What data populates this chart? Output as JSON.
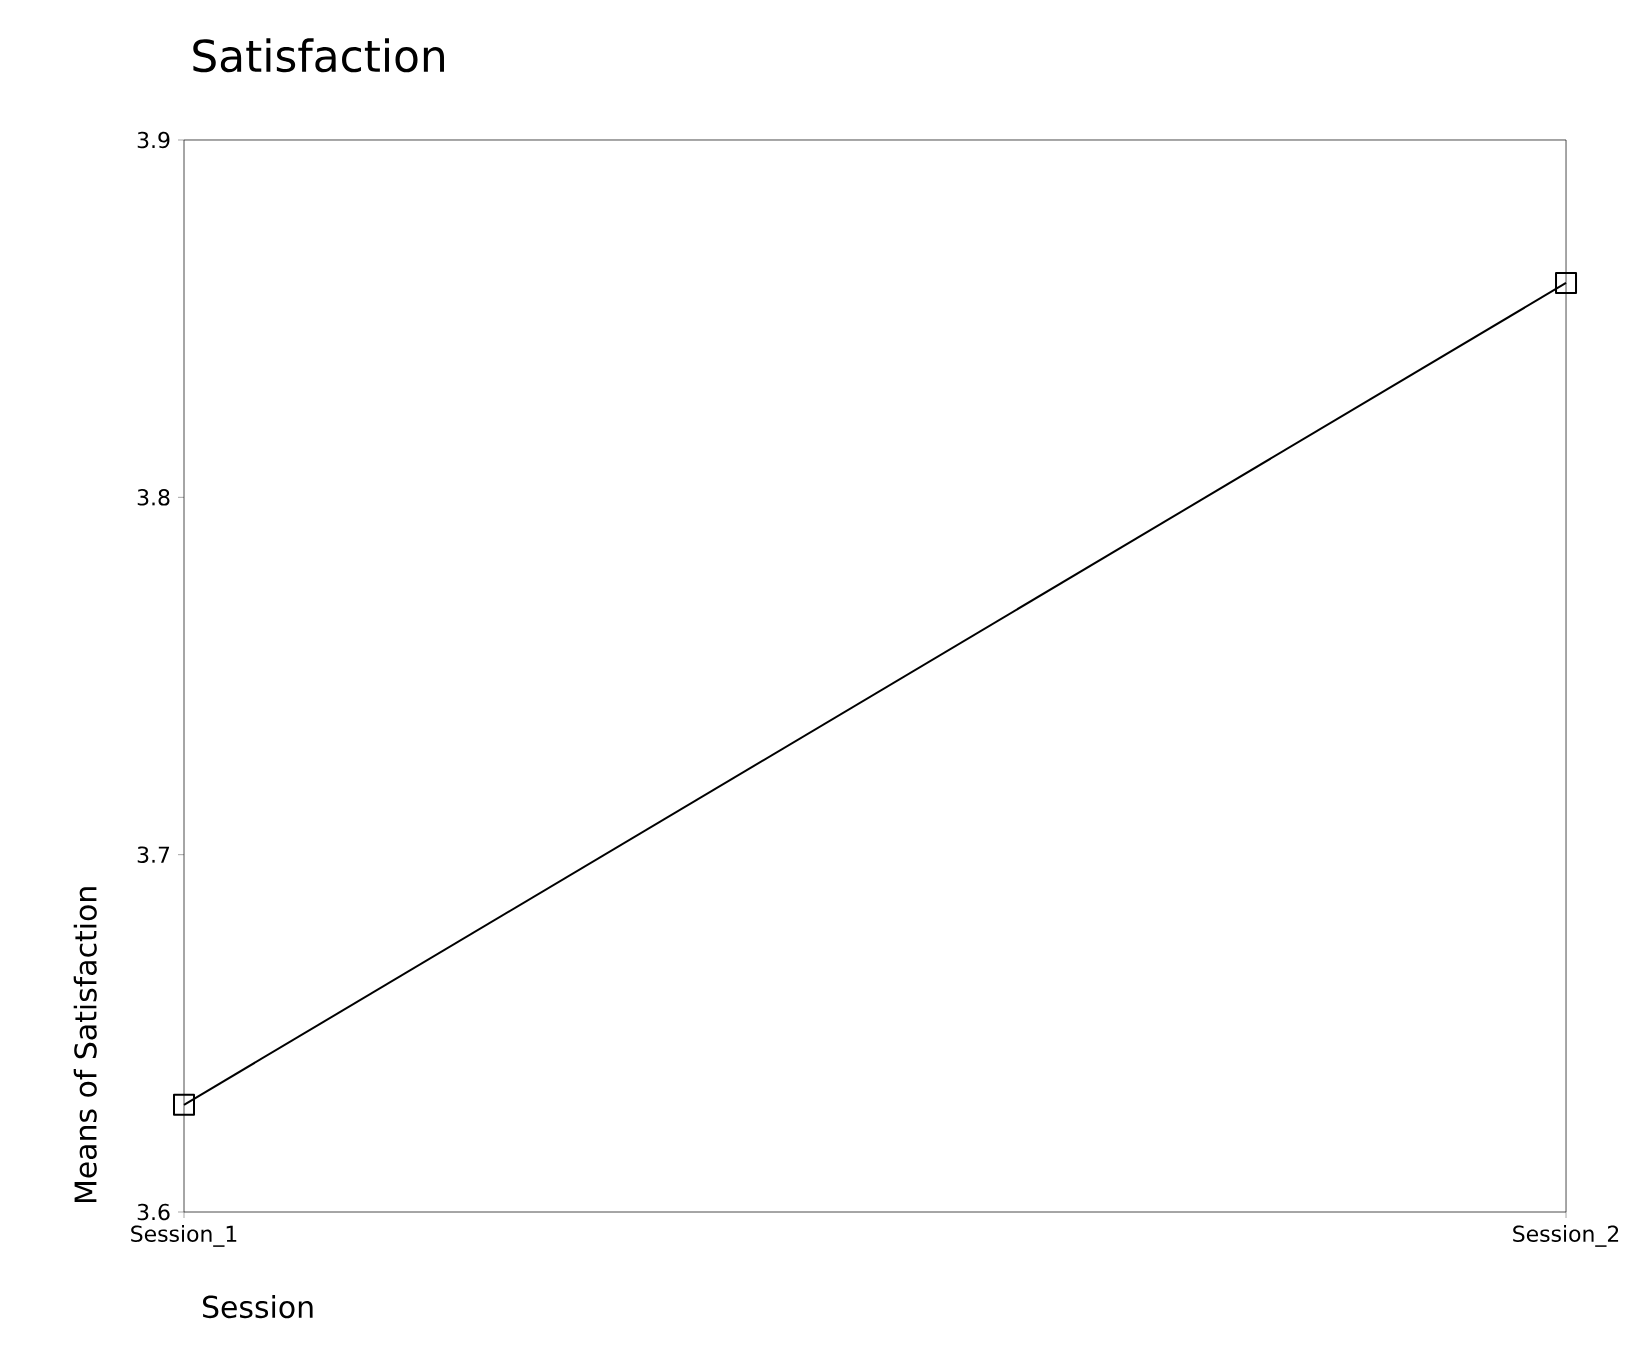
{
  "chart_data": {
    "type": "line",
    "title": "Satisfaction",
    "xlabel": "Session",
    "ylabel": "Means of Satisfaction",
    "categories": [
      "Session_1",
      "Session_2"
    ],
    "values": [
      3.63,
      3.86
    ],
    "color": "#000000",
    "ylim": [
      3.6,
      3.9
    ],
    "yticks": [
      3.6,
      3.7,
      3.8,
      3.9
    ],
    "marker": "square",
    "line_style": "solid",
    "grid": false
  }
}
